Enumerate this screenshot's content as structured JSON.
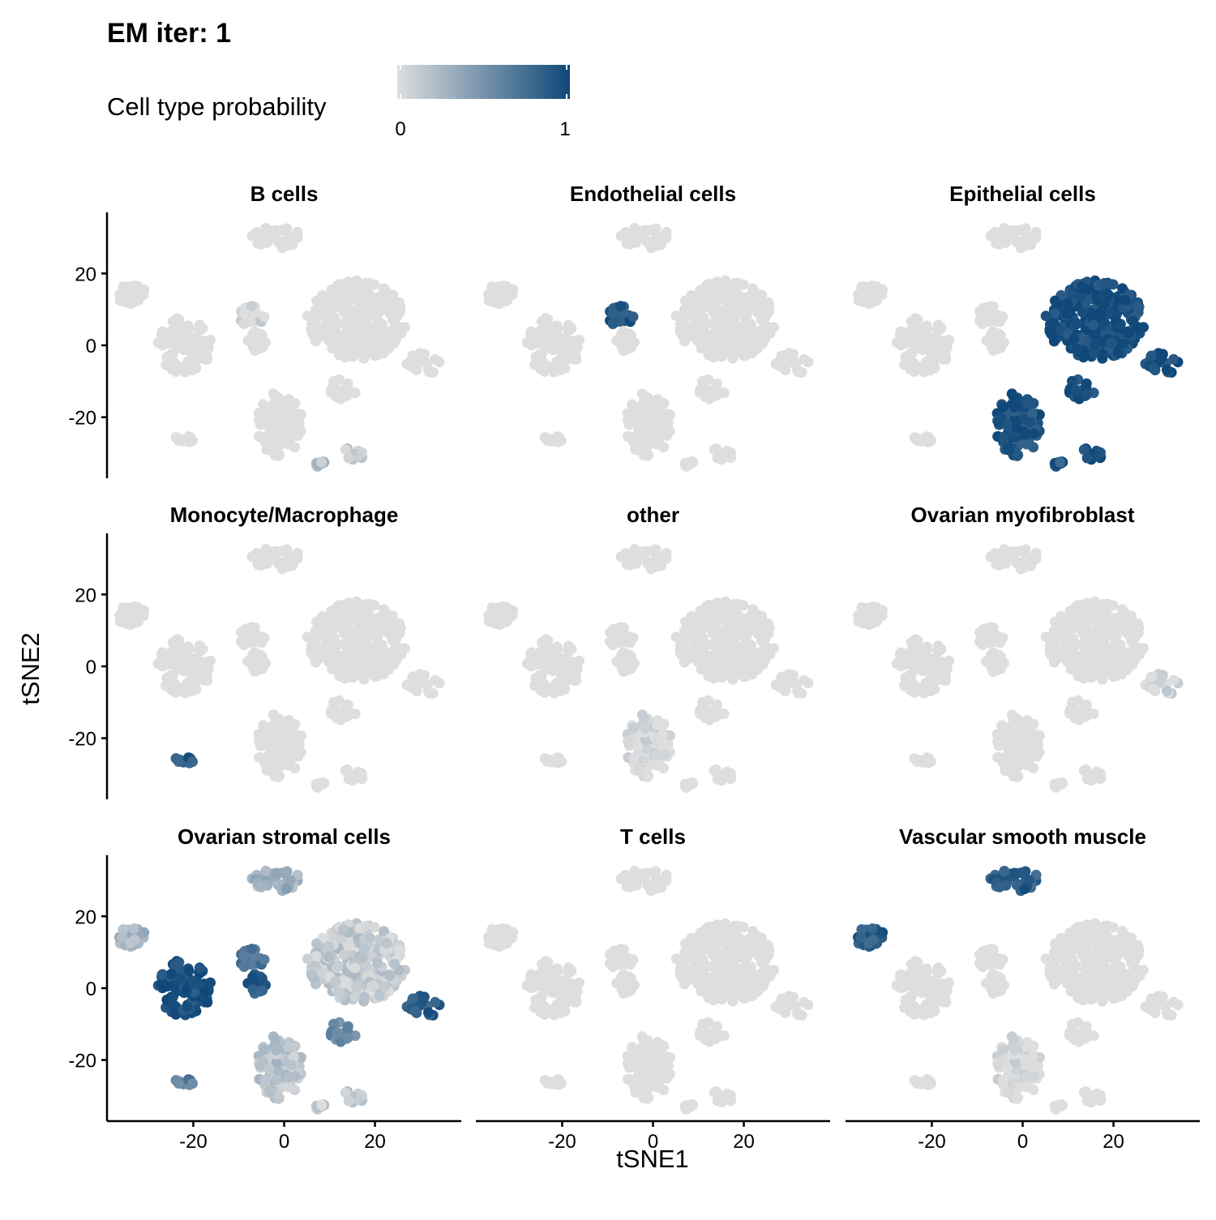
{
  "title": "EM iter: 1",
  "legend": {
    "title": "Cell type probability",
    "low_label": "0",
    "high_label": "1",
    "low_color": "#dedede",
    "high_color": "#0f4879"
  },
  "chart_data": {
    "type": "scatter",
    "title": "EM iter: 1",
    "xlabel": "tSNE1",
    "ylabel": "tSNE2",
    "xlim": [
      -39,
      39
    ],
    "ylim": [
      -37,
      37
    ],
    "x_ticks": [
      {
        "value": -20,
        "label": "-20"
      },
      {
        "value": 0,
        "label": "0"
      },
      {
        "value": 20,
        "label": "20"
      }
    ],
    "y_ticks": [
      {
        "value": 20,
        "label": "20"
      },
      {
        "value": 0,
        "label": "0"
      },
      {
        "value": -20,
        "label": "-20"
      }
    ],
    "color_scale": {
      "name": "Cell type probability",
      "min": 0,
      "max": 1,
      "low": "#dedede",
      "high": "#0f4879"
    },
    "clusters": [
      {
        "id": "c1",
        "cx": -2,
        "cy": 30,
        "rx": 6,
        "ry": 3
      },
      {
        "id": "c2",
        "cx": -33,
        "cy": 14,
        "rx": 4,
        "ry": 3
      },
      {
        "id": "c3",
        "cx": -22,
        "cy": 0,
        "rx": 6,
        "ry": 8
      },
      {
        "id": "c4",
        "cx": -7,
        "cy": 8,
        "rx": 3,
        "ry": 3
      },
      {
        "id": "c5",
        "cx": -6,
        "cy": 1,
        "rx": 2,
        "ry": 3
      },
      {
        "id": "c6",
        "cx": 16,
        "cy": 7,
        "rx": 11,
        "ry": 11
      },
      {
        "id": "c7",
        "cx": 31,
        "cy": -5,
        "rx": 4,
        "ry": 3
      },
      {
        "id": "c8",
        "cx": -1,
        "cy": -22,
        "rx": 5,
        "ry": 9
      },
      {
        "id": "c9",
        "cx": 13,
        "cy": -12,
        "rx": 3,
        "ry": 3
      },
      {
        "id": "c10",
        "cx": 15,
        "cy": -30,
        "rx": 3,
        "ry": 2
      },
      {
        "id": "c11",
        "cx": -22,
        "cy": -26,
        "rx": 3,
        "ry": 1
      },
      {
        "id": "c12",
        "cx": 8,
        "cy": -33,
        "rx": 1,
        "ry": 1
      }
    ],
    "panels": [
      {
        "name": "B cells",
        "probability": {
          "c1": 0,
          "c2": 0,
          "c3": 0,
          "c4": 0.05,
          "c5": 0,
          "c6": 0,
          "c7": 0,
          "c8": 0,
          "c9": 0,
          "c10": 0.1,
          "c11": 0,
          "c12": 0.2
        }
      },
      {
        "name": "Endothelial cells",
        "probability": {
          "c1": 0,
          "c2": 0,
          "c3": 0,
          "c4": 0.9,
          "c5": 0,
          "c6": 0,
          "c7": 0,
          "c8": 0,
          "c9": 0,
          "c10": 0,
          "c11": 0,
          "c12": 0
        }
      },
      {
        "name": "Epithelial cells",
        "probability": {
          "c1": 0,
          "c2": 0,
          "c3": 0,
          "c4": 0,
          "c5": 0,
          "c6": 0.98,
          "c7": 0.95,
          "c8": 0.95,
          "c9": 0.95,
          "c10": 0.95,
          "c11": 0,
          "c12": 0.9
        }
      },
      {
        "name": "Monocyte/Macrophage",
        "probability": {
          "c1": 0,
          "c2": 0,
          "c3": 0,
          "c4": 0,
          "c5": 0,
          "c6": 0,
          "c7": 0,
          "c8": 0,
          "c9": 0,
          "c10": 0,
          "c11": 0.85,
          "c12": 0
        }
      },
      {
        "name": "other",
        "probability": {
          "c1": 0,
          "c2": 0,
          "c3": 0,
          "c4": 0,
          "c5": 0,
          "c6": 0,
          "c7": 0,
          "c8": 0.02,
          "c9": 0,
          "c10": 0,
          "c11": 0,
          "c12": 0
        }
      },
      {
        "name": "Ovarian myofibroblast",
        "probability": {
          "c1": 0,
          "c2": 0,
          "c3": 0,
          "c4": 0,
          "c5": 0,
          "c6": 0,
          "c7": 0.03,
          "c8": 0,
          "c9": 0,
          "c10": 0,
          "c11": 0,
          "c12": 0
        }
      },
      {
        "name": "Ovarian stromal cells",
        "probability": {
          "c1": 0.3,
          "c2": 0.25,
          "c3": 0.98,
          "c4": 0.7,
          "c5": 0.85,
          "c6": 0.12,
          "c7": 0.85,
          "c8": 0.18,
          "c9": 0.55,
          "c10": 0.12,
          "c11": 0.6,
          "c12": 0.1
        }
      },
      {
        "name": "T cells",
        "probability": {
          "c1": 0,
          "c2": 0,
          "c3": 0,
          "c4": 0,
          "c5": 0,
          "c6": 0,
          "c7": 0,
          "c8": 0,
          "c9": 0,
          "c10": 0,
          "c11": 0,
          "c12": 0
        }
      },
      {
        "name": "Vascular smooth muscle",
        "probability": {
          "c1": 0.85,
          "c2": 0.85,
          "c3": 0,
          "c4": 0,
          "c5": 0,
          "c6": 0,
          "c7": 0,
          "c8": 0.02,
          "c9": 0,
          "c10": 0,
          "c11": 0,
          "c12": 0
        }
      }
    ]
  }
}
